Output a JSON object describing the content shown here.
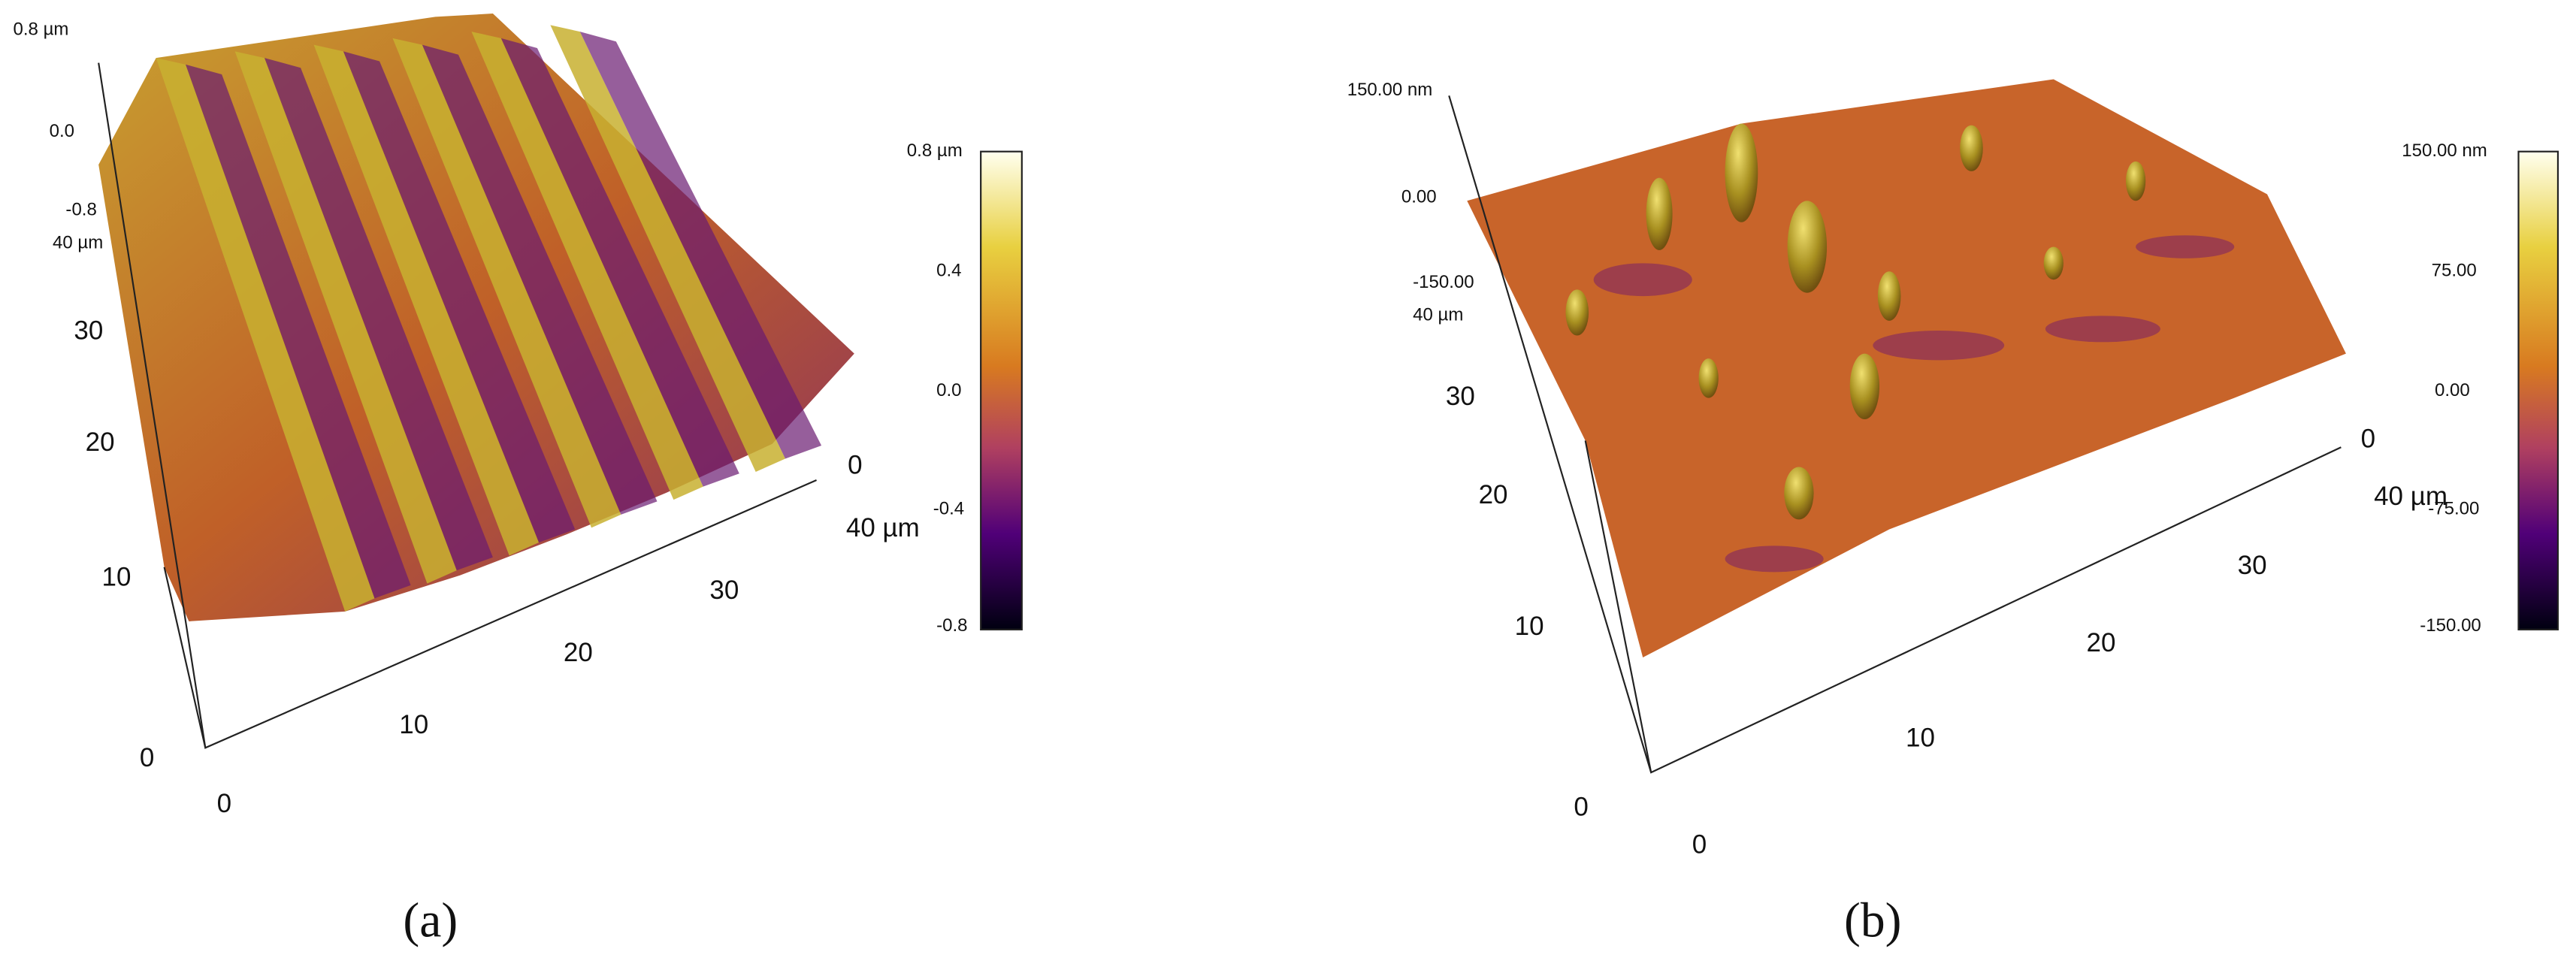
{
  "panels": [
    {
      "z_ticks": [
        "0.8 µm",
        "0.0",
        "-0.8"
      ],
      "y_ticks": [
        "40 µm",
        "30",
        "20",
        "10",
        "0"
      ],
      "x_ticks": [
        "0",
        "10",
        "20",
        "30",
        "40 µm"
      ],
      "corner_tick": "0",
      "colorbar_ticks": [
        "0.8 µm",
        "0.4",
        "0.0",
        "-0.4",
        "-0.8"
      ],
      "caption": "(a)"
    },
    {
      "z_ticks": [
        "150.00 nm",
        "0.00",
        "-150.00"
      ],
      "y_ticks": [
        "40 µm",
        "30",
        "20",
        "10",
        "0"
      ],
      "x_ticks": [
        "0",
        "10",
        "20",
        "30",
        "40 µm"
      ],
      "corner_tick": "0",
      "colorbar_ticks": [
        "150.00 nm",
        "75.00",
        "0.00",
        "-75.00",
        "-150.00"
      ],
      "caption": "(b)"
    }
  ]
}
